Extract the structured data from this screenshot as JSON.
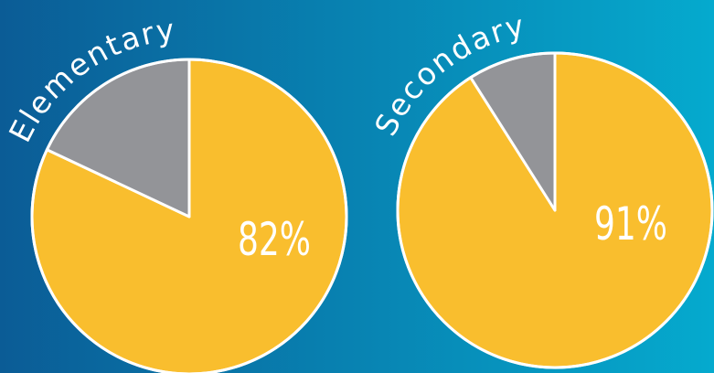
{
  "chart_data": [
    {
      "type": "pie",
      "title": "Elementary",
      "values": [
        82,
        18
      ],
      "value_labels": [
        "82%",
        null
      ],
      "colors": [
        "#f9be2e",
        "#939498"
      ]
    },
    {
      "type": "pie",
      "title": "Secondary",
      "values": [
        91,
        9
      ],
      "value_labels": [
        "91%",
        null
      ],
      "colors": [
        "#f9be2e",
        "#939498"
      ]
    }
  ]
}
